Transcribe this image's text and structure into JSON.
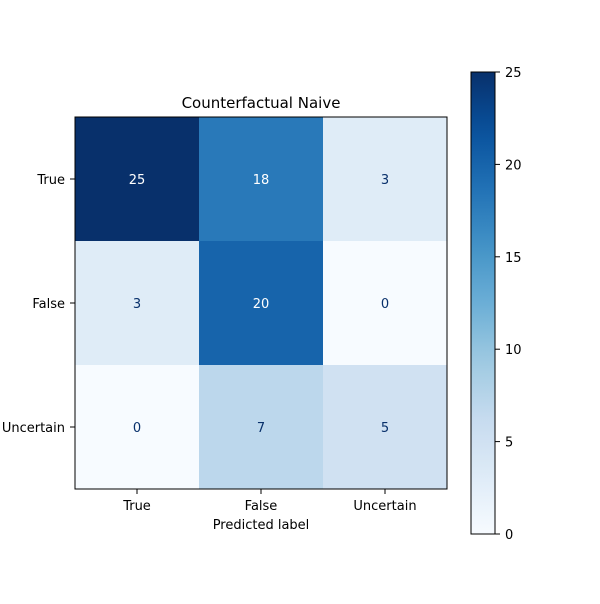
{
  "chart_data": {
    "type": "heatmap",
    "title": "Counterfactual Naive",
    "xlabel": "Predicted label",
    "ylabel": "",
    "x_categories": [
      "True",
      "False",
      "Uncertain"
    ],
    "y_categories": [
      "True",
      "False",
      "Uncertain"
    ],
    "values": [
      [
        25,
        18,
        3
      ],
      [
        3,
        20,
        0
      ],
      [
        0,
        7,
        5
      ]
    ],
    "colormap": "Blues",
    "colorbar": {
      "min": 0,
      "max": 25,
      "ticks": [
        0,
        5,
        10,
        15,
        20,
        25
      ]
    },
    "colors": {
      "low_text": "#08306b",
      "high_text": "#ffffff",
      "axis": "#000000"
    }
  }
}
